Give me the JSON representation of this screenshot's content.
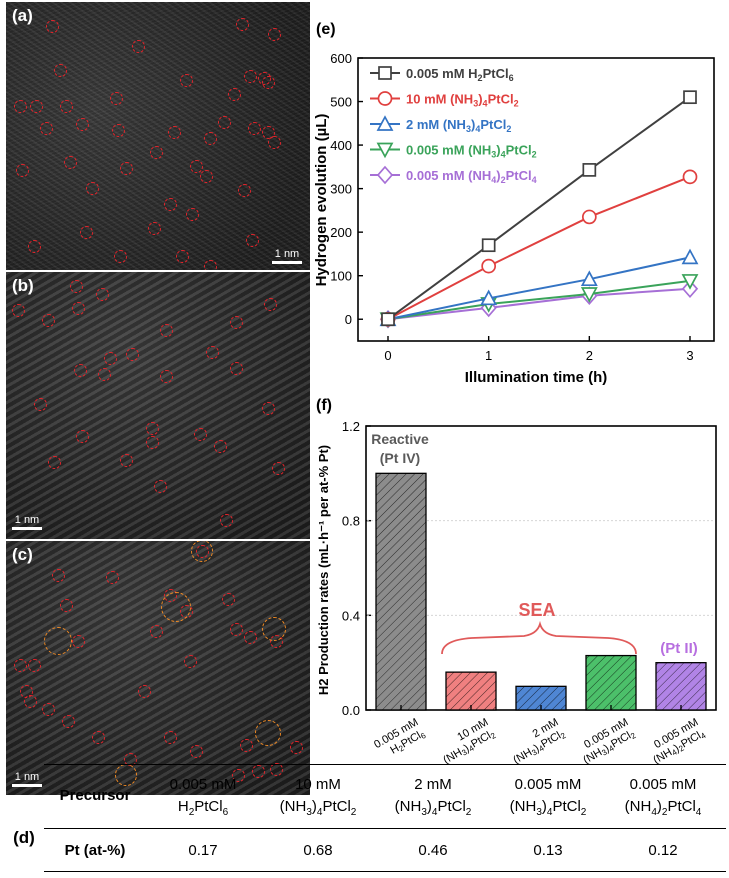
{
  "panels": {
    "a": {
      "label": "(a)",
      "scale": "1 nm"
    },
    "b": {
      "label": "(b)",
      "scale": "1 nm"
    },
    "c": {
      "label": "(c)",
      "scale": "1 nm"
    },
    "d": {
      "label": "(d)"
    },
    "e": {
      "label": "(e)"
    },
    "f": {
      "label": "(f)"
    }
  },
  "chart_data": [
    {
      "type": "line",
      "title": "",
      "xlabel": "Illumination time (h)",
      "ylabel": "Hydrogen evolution (µL)",
      "x": [
        0,
        1,
        2,
        3
      ],
      "xticks": [
        "0",
        "1",
        "2",
        "3"
      ],
      "ylim": [
        -50,
        600
      ],
      "yticks": [
        "0",
        "100",
        "200",
        "300",
        "400",
        "500",
        "600"
      ],
      "legend_position": "top-left",
      "series": [
        {
          "name": "0.005 mM H2PtCl6",
          "legend_main": "0.005 mM H",
          "legend_sub1": "2",
          "legend_mid": "PtCl",
          "legend_sub2": "6",
          "legend_tail": "",
          "marker": "square",
          "color": "#404040",
          "values": [
            0,
            170,
            343,
            510
          ]
        },
        {
          "name": "10 mM (NH3)4PtCl2",
          "legend_main": "10 mM (NH",
          "legend_sub1": "3",
          "legend_mid": ")",
          "legend_sub2": "4",
          "legend_tail": "PtCl",
          "legend_sub3": "2",
          "marker": "circle",
          "color": "#e0403f",
          "values": [
            0,
            122,
            235,
            327
          ]
        },
        {
          "name": "2 mM (NH3)4PtCl2",
          "legend_main": "2 mM (NH",
          "legend_sub1": "3",
          "legend_mid": ")",
          "legend_sub2": "4",
          "legend_tail": "PtCl",
          "legend_sub3": "2",
          "marker": "triangle-up",
          "color": "#3474c4",
          "values": [
            0,
            48,
            92,
            142
          ]
        },
        {
          "name": "0.005 mM (NH3)4PtCl2",
          "legend_main": "0.005 mM (NH",
          "legend_sub1": "3",
          "legend_mid": ")",
          "legend_sub2": "4",
          "legend_tail": "PtCl",
          "legend_sub3": "2",
          "marker": "triangle-down",
          "color": "#3aa35a",
          "values": [
            0,
            35,
            58,
            88
          ]
        },
        {
          "name": "0.005 mM (NH4)2PtCl4",
          "legend_main": "0.005 mM (NH",
          "legend_sub1": "4",
          "legend_mid": ")",
          "legend_sub2": "2",
          "legend_tail": "PtCl",
          "legend_sub3": "4",
          "marker": "diamond",
          "color": "#a66fd6",
          "values": [
            0,
            26,
            54,
            70
          ]
        }
      ]
    },
    {
      "type": "bar",
      "title": "",
      "xlabel": "",
      "ylabel": "H2 Production rates (mL·h⁻¹ per at-% Pt)",
      "ylim": [
        0,
        1.2
      ],
      "yticks": [
        "0.0",
        "0.4",
        "0.8",
        "1.2"
      ],
      "categories": [
        "0.005 mM H2PtCl6",
        "10 mM (NH3)4PtCl2",
        "2 mM (NH3)4PtCl2",
        "0.005 mM (NH3)4PtCl2",
        "0.005 mM (NH4)2PtCl4"
      ],
      "values": [
        1.0,
        0.16,
        0.1,
        0.23,
        0.2
      ],
      "colors": [
        "#8c8c8c",
        "#f08080",
        "#4f86d4",
        "#4cc06a",
        "#b184e6"
      ],
      "annotations": {
        "reactive": "Reactive",
        "pt4": "(Pt IV)",
        "sea": "SEA",
        "pt2": "(Pt II)"
      }
    }
  ],
  "table": {
    "header_label": "Precursor",
    "row_label": "Pt (at-%)",
    "columns": [
      {
        "line1": "0.005 mM",
        "l2a": "H",
        "l2s1": "2",
        "l2b": "PtCl",
        "l2s2": "6",
        "l2c": "",
        "l2s3": "",
        "value": "0.17"
      },
      {
        "line1": "10 mM",
        "l2a": "(NH",
        "l2s1": "3",
        "l2b": ")",
        "l2s2": "4",
        "l2c": "PtCl",
        "l2s3": "2",
        "value": "0.68"
      },
      {
        "line1": "2 mM",
        "l2a": "(NH",
        "l2s1": "3",
        "l2b": ")",
        "l2s2": "4",
        "l2c": "PtCl",
        "l2s3": "2",
        "value": "0.46"
      },
      {
        "line1": "0.005 mM",
        "l2a": "(NH",
        "l2s1": "3",
        "l2b": ")",
        "l2s2": "4",
        "l2c": "PtCl",
        "l2s3": "2",
        "value": "0.13"
      },
      {
        "line1": "0.005 mM",
        "l2a": "(NH",
        "l2s1": "4",
        "l2b": ")",
        "l2s2": "2",
        "l2c": "PtCl",
        "l2s3": "4",
        "value": "0.12"
      }
    ]
  },
  "bar_tick_labels": [
    {
      "l1": "0.005 mM",
      "a": "H",
      "s1": "2",
      "b": "PtCl",
      "s2": "6",
      "c": "",
      "s3": ""
    },
    {
      "l1": "10 mM",
      "a": "(NH",
      "s1": "3",
      "b": ")",
      "s2": "4",
      "c": "PtCl",
      "s3": "2"
    },
    {
      "l1": "2 mM",
      "a": "(NH",
      "s1": "3",
      "b": ")",
      "s2": "4",
      "c": "PtCl",
      "s3": "2"
    },
    {
      "l1": "0.005 mM",
      "a": "(NH",
      "s1": "3",
      "b": ")",
      "s2": "4",
      "c": "PtCl",
      "s3": "2"
    },
    {
      "l1": "0.005 mM",
      "a": "(NH",
      "s1": "4",
      "b": ")",
      "s2": "2",
      "c": "PtCl",
      "s3": "4"
    }
  ]
}
